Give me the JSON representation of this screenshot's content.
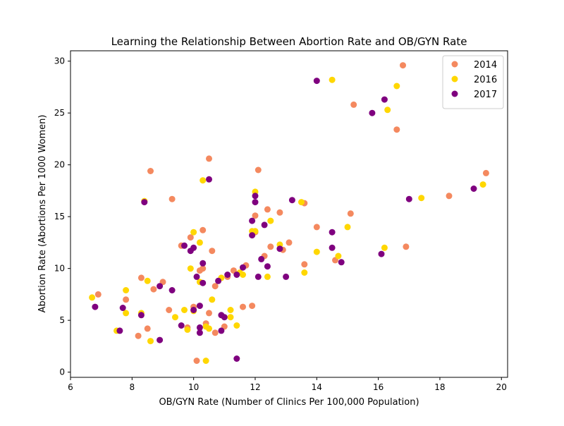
{
  "chart_data": {
    "type": "scatter",
    "title": "Learning the Relationship Between Abortion Rate and OB/GYN Rate",
    "xlabel": "OB/GYN Rate (Number of Clinics Per 100,000 Population)",
    "ylabel": "Abortion Rate (Abortions Per 1000 Women)",
    "xlim": [
      6,
      20.2
    ],
    "ylim": [
      -0.5,
      31.0
    ],
    "xticks": [
      6,
      8,
      10,
      12,
      14,
      16,
      18,
      20
    ],
    "yticks": [
      0,
      5,
      10,
      15,
      20,
      25,
      30
    ],
    "legend_position": "top-right",
    "series": [
      {
        "name": "2014",
        "color": "#f4895f",
        "points": [
          [
            6.9,
            7.5
          ],
          [
            7.8,
            7.0
          ],
          [
            8.2,
            3.5
          ],
          [
            8.3,
            9.1
          ],
          [
            8.5,
            4.2
          ],
          [
            8.6,
            19.4
          ],
          [
            8.7,
            8.0
          ],
          [
            9.0,
            8.7
          ],
          [
            9.2,
            6.0
          ],
          [
            9.3,
            16.7
          ],
          [
            9.6,
            12.2
          ],
          [
            9.8,
            4.3
          ],
          [
            9.9,
            13.0
          ],
          [
            10.0,
            6.3
          ],
          [
            10.1,
            1.1
          ],
          [
            10.2,
            9.8
          ],
          [
            10.3,
            13.7
          ],
          [
            10.3,
            10.0
          ],
          [
            10.4,
            4.7
          ],
          [
            10.5,
            20.6
          ],
          [
            10.5,
            5.7
          ],
          [
            10.6,
            11.7
          ],
          [
            10.7,
            8.3
          ],
          [
            10.7,
            3.8
          ],
          [
            11.0,
            4.4
          ],
          [
            11.1,
            9.2
          ],
          [
            11.3,
            9.8
          ],
          [
            11.6,
            6.3
          ],
          [
            11.7,
            10.3
          ],
          [
            11.9,
            6.4
          ],
          [
            12.0,
            13.5
          ],
          [
            12.0,
            15.1
          ],
          [
            12.1,
            19.5
          ],
          [
            12.3,
            11.2
          ],
          [
            12.4,
            15.7
          ],
          [
            12.5,
            12.1
          ],
          [
            12.8,
            15.4
          ],
          [
            12.9,
            11.8
          ],
          [
            13.1,
            12.5
          ],
          [
            13.6,
            16.3
          ],
          [
            13.6,
            10.4
          ],
          [
            14.0,
            14.0
          ],
          [
            14.6,
            10.8
          ],
          [
            15.1,
            15.3
          ],
          [
            15.2,
            25.8
          ],
          [
            16.6,
            23.4
          ],
          [
            16.8,
            29.6
          ],
          [
            16.9,
            12.1
          ],
          [
            18.3,
            17.0
          ],
          [
            19.5,
            19.2
          ]
        ]
      },
      {
        "name": "2016",
        "color": "#ffd700",
        "points": [
          [
            6.7,
            7.2
          ],
          [
            7.5,
            4.0
          ],
          [
            7.8,
            7.9
          ],
          [
            7.8,
            5.7
          ],
          [
            8.3,
            5.7
          ],
          [
            8.4,
            16.5
          ],
          [
            8.5,
            8.8
          ],
          [
            8.6,
            3.0
          ],
          [
            9.4,
            5.3
          ],
          [
            9.7,
            6.0
          ],
          [
            9.8,
            4.1
          ],
          [
            9.9,
            10.0
          ],
          [
            10.0,
            13.5
          ],
          [
            10.0,
            5.9
          ],
          [
            10.2,
            8.7
          ],
          [
            10.2,
            12.5
          ],
          [
            10.3,
            18.5
          ],
          [
            10.4,
            4.4
          ],
          [
            10.4,
            1.1
          ],
          [
            10.5,
            4.2
          ],
          [
            10.6,
            7.0
          ],
          [
            10.9,
            9.1
          ],
          [
            11.2,
            6.0
          ],
          [
            11.2,
            5.3
          ],
          [
            11.4,
            4.5
          ],
          [
            11.5,
            9.6
          ],
          [
            11.6,
            9.4
          ],
          [
            11.9,
            13.6
          ],
          [
            12.0,
            17.4
          ],
          [
            12.0,
            13.6
          ],
          [
            12.4,
            9.2
          ],
          [
            12.5,
            14.6
          ],
          [
            12.8,
            12.3
          ],
          [
            13.5,
            16.4
          ],
          [
            13.6,
            9.6
          ],
          [
            14.0,
            11.6
          ],
          [
            14.5,
            28.2
          ],
          [
            14.7,
            11.2
          ],
          [
            15.0,
            14.0
          ],
          [
            16.2,
            12.0
          ],
          [
            16.3,
            25.3
          ],
          [
            16.6,
            27.6
          ],
          [
            17.4,
            16.8
          ],
          [
            19.4,
            18.1
          ]
        ]
      },
      {
        "name": "2017",
        "color": "#7f007f",
        "points": [
          [
            6.8,
            6.3
          ],
          [
            7.6,
            4.0
          ],
          [
            7.7,
            6.2
          ],
          [
            8.3,
            5.5
          ],
          [
            8.4,
            16.4
          ],
          [
            8.9,
            3.1
          ],
          [
            8.9,
            8.3
          ],
          [
            9.3,
            7.9
          ],
          [
            9.6,
            4.5
          ],
          [
            9.7,
            12.2
          ],
          [
            9.9,
            11.7
          ],
          [
            10.0,
            6.0
          ],
          [
            10.0,
            12.0
          ],
          [
            10.1,
            9.2
          ],
          [
            10.2,
            4.3
          ],
          [
            10.2,
            3.8
          ],
          [
            10.2,
            6.4
          ],
          [
            10.3,
            10.5
          ],
          [
            10.3,
            8.6
          ],
          [
            10.5,
            18.6
          ],
          [
            10.8,
            8.8
          ],
          [
            10.9,
            5.5
          ],
          [
            10.9,
            4.0
          ],
          [
            11.0,
            5.3
          ],
          [
            11.1,
            9.4
          ],
          [
            11.4,
            9.4
          ],
          [
            11.4,
            1.3
          ],
          [
            11.6,
            10.1
          ],
          [
            11.9,
            14.6
          ],
          [
            11.9,
            13.2
          ],
          [
            12.0,
            17.0
          ],
          [
            12.0,
            16.4
          ],
          [
            12.1,
            9.2
          ],
          [
            12.2,
            10.9
          ],
          [
            12.3,
            14.2
          ],
          [
            12.4,
            10.2
          ],
          [
            12.8,
            11.9
          ],
          [
            13.0,
            9.2
          ],
          [
            13.2,
            16.6
          ],
          [
            14.0,
            28.1
          ],
          [
            14.5,
            13.5
          ],
          [
            14.5,
            12.0
          ],
          [
            14.8,
            10.6
          ],
          [
            15.8,
            25.0
          ],
          [
            16.1,
            11.4
          ],
          [
            16.2,
            26.3
          ],
          [
            17.0,
            16.7
          ],
          [
            19.1,
            17.7
          ]
        ]
      }
    ]
  }
}
